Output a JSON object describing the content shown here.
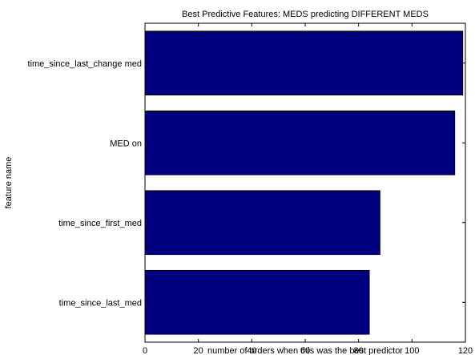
{
  "chart_data": {
    "type": "bar",
    "orientation": "horizontal",
    "title": "Best Predictive Features: MEDS predicting DIFFERENT MEDS",
    "xlabel": "number of orders when this was the best predictor",
    "ylabel": "feature name",
    "categories": [
      "time_since_last_change med",
      "MED on",
      "time_since_first_med",
      "time_since_last_med"
    ],
    "values": [
      119,
      116,
      88,
      84
    ],
    "xlim": [
      0,
      120
    ],
    "xticks": [
      0,
      20,
      40,
      60,
      80,
      100,
      120
    ],
    "bar_color": "#000080",
    "grid": false,
    "legend": "none"
  }
}
